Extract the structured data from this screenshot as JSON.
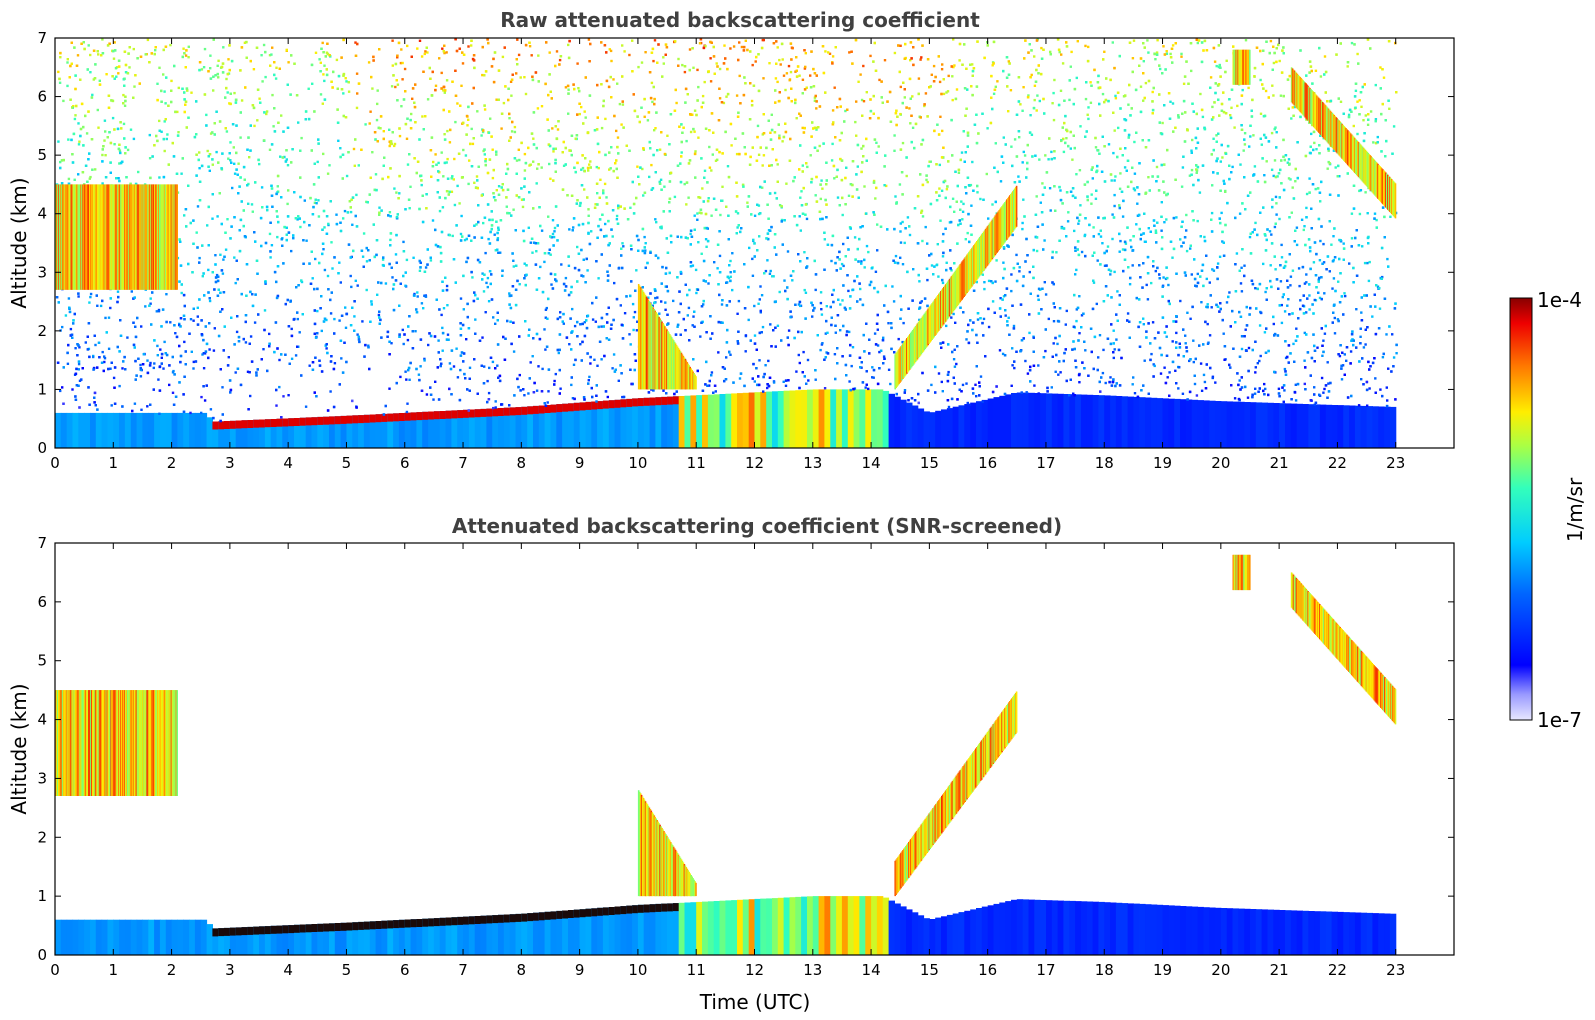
{
  "chart_data": [
    {
      "type": "heatmap",
      "title": "Raw attenuated backscattering coefficient",
      "xlabel": "",
      "ylabel": "Altitude (km)",
      "xlim": [
        0,
        24
      ],
      "ylim": [
        0,
        7
      ],
      "xticks": [
        "0",
        "1",
        "2",
        "3",
        "4",
        "5",
        "6",
        "7",
        "8",
        "9",
        "10",
        "11",
        "12",
        "13",
        "14",
        "15",
        "16",
        "17",
        "18",
        "19",
        "20",
        "21",
        "22",
        "23"
      ],
      "yticks": [
        "0",
        "1",
        "2",
        "3",
        "4",
        "5",
        "6",
        "7"
      ],
      "data_extent_hours": [
        0,
        23
      ],
      "screened": false,
      "colormap": "jet",
      "features": {
        "boundary_layer_top_km": [
          {
            "t": 0,
            "h": 0.6
          },
          {
            "t": 2.6,
            "h": 0.6
          },
          {
            "t": 2.7,
            "h": 0.45
          },
          {
            "t": 5,
            "h": 0.55
          },
          {
            "t": 8,
            "h": 0.7
          },
          {
            "t": 10,
            "h": 0.85
          },
          {
            "t": 11,
            "h": 0.9
          },
          {
            "t": 13,
            "h": 1.0
          },
          {
            "t": 14.2,
            "h": 1.0
          },
          {
            "t": 15,
            "h": 0.6
          },
          {
            "t": 16.5,
            "h": 0.95
          },
          {
            "t": 18,
            "h": 0.9
          },
          {
            "t": 20,
            "h": 0.8
          },
          {
            "t": 23,
            "h": 0.7
          }
        ],
        "cloud_layers": [
          {
            "t_start": 0.0,
            "t_end": 2.1,
            "h_bottom": 2.7,
            "h_top": 4.5
          },
          {
            "t_start": 10.0,
            "t_end": 11.0,
            "h_bottom": 1.0,
            "h_top": 2.8
          },
          {
            "t_start": 14.4,
            "t_end": 16.5,
            "h_bottom": 1.0,
            "h_top": 4.5
          },
          {
            "t_start": 20.2,
            "t_end": 20.5,
            "h_bottom": 6.2,
            "h_top": 6.8
          },
          {
            "t_start": 21.2,
            "t_end": 23.0,
            "h_bottom": 3.9,
            "h_top": 6.5
          }
        ]
      }
    },
    {
      "type": "heatmap",
      "title": "Attenuated backscattering coefficient (SNR-screened)",
      "xlabel": "Time (UTC)",
      "ylabel": "Altitude (km)",
      "xlim": [
        0,
        24
      ],
      "ylim": [
        0,
        7
      ],
      "xticks": [
        "0",
        "1",
        "2",
        "3",
        "4",
        "5",
        "6",
        "7",
        "8",
        "9",
        "10",
        "11",
        "12",
        "13",
        "14",
        "15",
        "16",
        "17",
        "18",
        "19",
        "20",
        "21",
        "22",
        "23"
      ],
      "yticks": [
        "0",
        "1",
        "2",
        "3",
        "4",
        "5",
        "6",
        "7"
      ],
      "data_extent_hours": [
        0,
        23
      ],
      "screened": true,
      "colormap": "jet"
    }
  ],
  "colorbar": {
    "label": "1/m/sr",
    "max_label": "1e-4",
    "min_label": "1e-7",
    "scale": "log",
    "range": [
      1e-07,
      0.0001
    ]
  }
}
